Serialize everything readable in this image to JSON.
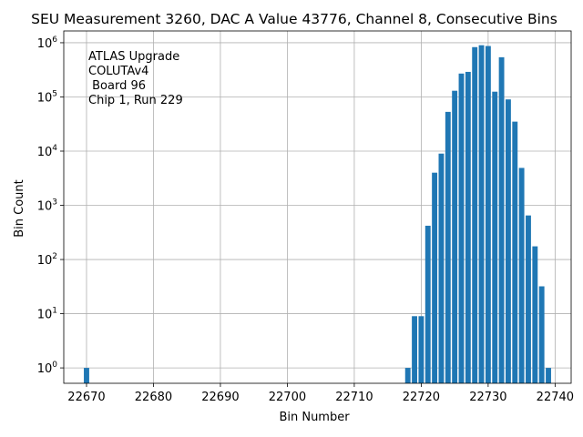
{
  "chart_data": {
    "type": "bar",
    "title": "SEU Measurement 3260, DAC A Value 43776, Channel 8, Consecutive Bins",
    "xlabel": "Bin Number",
    "ylabel": "Bin Count",
    "yscale": "log",
    "xlim": [
      22666.6,
      22742.4
    ],
    "ylim": [
      0.52,
      1650000
    ],
    "grid": true,
    "bar_color": "#1f77b4",
    "x_ticks": [
      22670,
      22680,
      22690,
      22700,
      22710,
      22720,
      22730,
      22740
    ],
    "y_ticks": [
      {
        "value": 1,
        "base": "10",
        "exp": "0"
      },
      {
        "value": 10,
        "base": "10",
        "exp": "1"
      },
      {
        "value": 100,
        "base": "10",
        "exp": "2"
      },
      {
        "value": 1000,
        "base": "10",
        "exp": "3"
      },
      {
        "value": 10000,
        "base": "10",
        "exp": "4"
      },
      {
        "value": 100000,
        "base": "10",
        "exp": "5"
      },
      {
        "value": 1000000,
        "base": "10",
        "exp": "6"
      }
    ],
    "bins": [
      22670,
      22718,
      22719,
      22720,
      22721,
      22722,
      22723,
      22724,
      22725,
      22726,
      22727,
      22728,
      22729,
      22730,
      22731,
      22732,
      22733,
      22734,
      22735,
      22736,
      22737,
      22738,
      22739
    ],
    "values": [
      1,
      1,
      9,
      9,
      420,
      4000,
      9000,
      53000,
      130000,
      270000,
      290000,
      830000,
      900000,
      870000,
      125000,
      540000,
      90000,
      35000,
      4900,
      650,
      175,
      32,
      1
    ],
    "annotation": [
      "ATLAS Upgrade",
      "COLUTAv4",
      " Board 96",
      "Chip 1, Run 229"
    ]
  }
}
